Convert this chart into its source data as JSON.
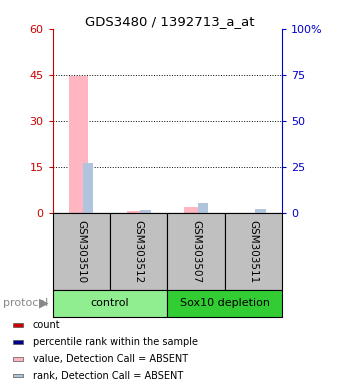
{
  "title": "GDS3480 / 1392713_a_at",
  "samples": [
    "GSM303510",
    "GSM303512",
    "GSM303507",
    "GSM303511"
  ],
  "groups": [
    {
      "name": "control",
      "color": "#90EE90",
      "start": 0,
      "end": 2
    },
    {
      "name": "Sox10 depletion",
      "color": "#32CD32",
      "start": 2,
      "end": 4
    }
  ],
  "value_absent": [
    44.5,
    0.8,
    2.0,
    0.0
  ],
  "rank_absent": [
    27.0,
    1.5,
    5.5,
    2.5
  ],
  "ylim_left": [
    0,
    60
  ],
  "ylim_right": [
    0,
    100
  ],
  "yticks_left": [
    0,
    15,
    30,
    45,
    60
  ],
  "yticks_right": [
    0,
    25,
    50,
    75,
    100
  ],
  "ytick_labels_right": [
    "0",
    "25",
    "50",
    "75",
    "100%"
  ],
  "color_value_absent": "#FFB6C1",
  "color_rank_absent": "#B0C4DE",
  "color_count": "#CC0000",
  "color_rank_present": "#00008B",
  "left_tick_color": "#CC0000",
  "right_tick_color": "#0000CC",
  "sample_area_color": "#C0C0C0",
  "legend_items": [
    {
      "label": "count",
      "color": "#CC0000"
    },
    {
      "label": "percentile rank within the sample",
      "color": "#00008B"
    },
    {
      "label": "value, Detection Call = ABSENT",
      "color": "#FFB6C1"
    },
    {
      "label": "rank, Detection Call = ABSENT",
      "color": "#B0C4DE"
    }
  ]
}
